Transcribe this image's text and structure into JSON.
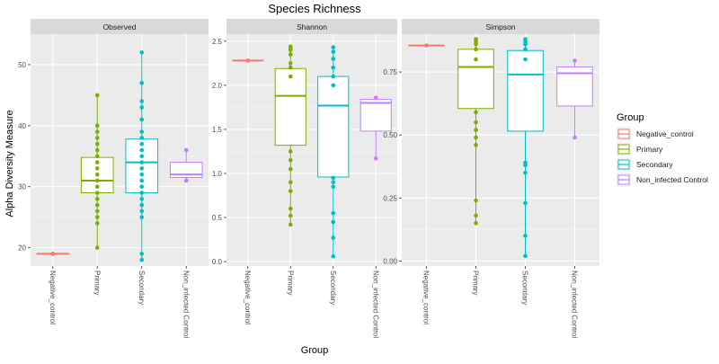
{
  "title": "Species Richness",
  "xlabel": "Group",
  "ylabel": "Alpha Diversity Measure",
  "legend": {
    "title": "Group",
    "position": "right",
    "items": [
      {
        "label": "Negative_control",
        "color": "#F8766D"
      },
      {
        "label": "Primary",
        "color": "#7CAE00"
      },
      {
        "label": "Secondary",
        "color": "#00BFC4"
      },
      {
        "label": "Non_infected Control",
        "color": "#C77CFF"
      }
    ]
  },
  "chart_data": [
    {
      "type": "box",
      "panel": "Observed",
      "categories": [
        "Negative_control",
        "Primary",
        "Secondary",
        "Non_infected Control"
      ],
      "ylim": [
        17,
        55
      ],
      "yticks": [
        20,
        30,
        40,
        50
      ],
      "boxes": [
        {
          "q1": 19,
          "median": 19,
          "q3": 19,
          "whisker_low": 19,
          "whisker_high": 19,
          "points": [
            19,
            19
          ]
        },
        {
          "q1": 29,
          "median": 31,
          "q3": 34.8,
          "whisker_low": 20,
          "whisker_high": 45,
          "points": [
            20,
            24,
            25,
            26,
            27,
            28,
            29,
            30,
            31,
            32,
            33,
            34,
            35,
            36,
            37,
            38,
            39,
            40,
            45
          ]
        },
        {
          "q1": 29,
          "median": 34,
          "q3": 37.8,
          "whisker_low": 18,
          "whisker_high": 52,
          "points": [
            18,
            19,
            25,
            26,
            27,
            28,
            29,
            30,
            31,
            32,
            33,
            34,
            35,
            36,
            37,
            38,
            39,
            41,
            43,
            44,
            47,
            52
          ]
        },
        {
          "q1": 31.5,
          "median": 32,
          "q3": 34,
          "whisker_low": 31,
          "whisker_high": 36,
          "points": [
            31,
            36
          ]
        }
      ]
    },
    {
      "type": "box",
      "panel": "Shannon",
      "categories": [
        "Negative_control",
        "Primary",
        "Secondary",
        "Non_infected Control"
      ],
      "ylim": [
        -0.05,
        2.58
      ],
      "yticks": [
        0.0,
        0.5,
        1.0,
        1.5,
        2.0,
        2.5
      ],
      "boxes": [
        {
          "q1": 2.28,
          "median": 2.28,
          "q3": 2.28,
          "whisker_low": 2.28,
          "whisker_high": 2.28,
          "points": [
            2.28
          ]
        },
        {
          "q1": 1.32,
          "median": 1.88,
          "q3": 2.19,
          "whisker_low": 0.42,
          "whisker_high": 2.44,
          "points": [
            0.42,
            0.52,
            0.6,
            0.8,
            0.9,
            1.05,
            1.15,
            1.25,
            2.1,
            2.2,
            2.25,
            2.35,
            2.4,
            2.42,
            2.44
          ]
        },
        {
          "q1": 0.96,
          "median": 1.77,
          "q3": 2.1,
          "whisker_low": 0.06,
          "whisker_high": 2.43,
          "points": [
            0.06,
            0.27,
            0.45,
            0.55,
            0.85,
            0.9,
            0.95,
            2.0,
            2.1,
            2.2,
            2.3,
            2.38,
            2.43
          ]
        },
        {
          "q1": 1.48,
          "median": 1.8,
          "q3": 1.84,
          "whisker_low": 1.17,
          "whisker_high": 1.86,
          "points": [
            1.17,
            1.86
          ]
        }
      ]
    },
    {
      "type": "box",
      "panel": "Simpson",
      "categories": [
        "Negative_control",
        "Primary",
        "Secondary",
        "Non_infected Control"
      ],
      "ylim": [
        -0.02,
        0.9
      ],
      "yticks": [
        0.0,
        0.25,
        0.5,
        0.75
      ],
      "ytick_labels": [
        "0.00",
        "0.25",
        "0.50",
        "0.75"
      ],
      "boxes": [
        {
          "q1": 0.855,
          "median": 0.855,
          "q3": 0.855,
          "whisker_low": 0.855,
          "whisker_high": 0.855,
          "points": [
            0.855
          ]
        },
        {
          "q1": 0.605,
          "median": 0.77,
          "q3": 0.84,
          "whisker_low": 0.15,
          "whisker_high": 0.88,
          "points": [
            0.15,
            0.18,
            0.24,
            0.46,
            0.49,
            0.52,
            0.55,
            0.59,
            0.8,
            0.84,
            0.86,
            0.87,
            0.88
          ]
        },
        {
          "q1": 0.515,
          "median": 0.74,
          "q3": 0.835,
          "whisker_low": 0.02,
          "whisker_high": 0.88,
          "points": [
            0.02,
            0.1,
            0.23,
            0.35,
            0.38,
            0.39,
            0.8,
            0.84,
            0.86,
            0.87,
            0.88
          ]
        },
        {
          "q1": 0.615,
          "median": 0.745,
          "q3": 0.77,
          "whisker_low": 0.49,
          "whisker_high": 0.795,
          "points": [
            0.49,
            0.795
          ]
        }
      ]
    }
  ]
}
